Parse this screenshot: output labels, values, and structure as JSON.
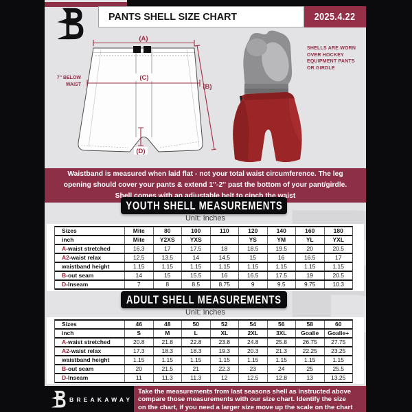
{
  "header": {
    "title": "PANTS SHELL SIZE CHART",
    "date": "2025.4.22"
  },
  "diagram": {
    "label_a": "(A)",
    "label_b": "(B)",
    "label_c": "(C)",
    "label_d": "(D)",
    "waist_note_line1": "7'' BELOW",
    "waist_note_line2": "WAIST"
  },
  "photo_note": {
    "lines": [
      "SHELLS ARE WORN",
      "OVER HOCKEY",
      "EQUIPMENT PANTS",
      "OR GIRDLE"
    ]
  },
  "info_banner": {
    "lines": [
      "Waistband is measured when laid flat - not your total waist circumference. The leg",
      "opening should cover your pants & extend 1''-2'' past the bottom of your pant/girdle.",
      "Shell comes with an adjustable belt to cinch the waist"
    ]
  },
  "youth": {
    "title": "YOUTH SHELL MEASUREMENTS",
    "unit_label": "Unit: Inches",
    "table": {
      "size_row": {
        "label": "Sizes",
        "values": [
          "Mite",
          "80",
          "100",
          "110",
          "120",
          "140",
          "160",
          "180"
        ]
      },
      "inch_row": {
        "label": "inch",
        "values": [
          "Mite",
          "Y2XS",
          "YXS",
          "",
          "YS",
          "YM",
          "YL",
          "YXL"
        ]
      },
      "rows": [
        {
          "prefix": "A",
          "label": "-waist stretched",
          "values": [
            "16.3",
            "17",
            "17.5",
            "18",
            "18.5",
            "19.5",
            "20",
            "20.5"
          ]
        },
        {
          "prefix": "A2",
          "label": "-waist relax",
          "values": [
            "12.5",
            "13.5",
            "14",
            "14.5",
            "15",
            "16",
            "16.5",
            "17"
          ]
        },
        {
          "prefix": "",
          "label": "waistband height",
          "values": [
            "1.15",
            "1.15",
            "1.15",
            "1.15",
            "1.15",
            "1.15",
            "1.15",
            "1.15"
          ]
        },
        {
          "prefix": "B",
          "label": "-out seam",
          "values": [
            "14",
            "15",
            "15.5",
            "16",
            "16.5",
            "17.5",
            "19",
            "20.5"
          ]
        },
        {
          "prefix": "D",
          "label": "-Inseam",
          "values": [
            "7",
            "8",
            "8.5",
            "8.75",
            "9",
            "9.5",
            "9.75",
            "10.3"
          ]
        }
      ]
    }
  },
  "adult": {
    "title": "ADULT SHELL MEASUREMENTS",
    "unit_label": "Unit: Inches",
    "table": {
      "size_row": {
        "label": "Sizes",
        "values": [
          "46",
          "48",
          "50",
          "52",
          "54",
          "56",
          "58",
          "60"
        ]
      },
      "inch_row": {
        "label": "inch",
        "values": [
          "S",
          "M",
          "L",
          "XL",
          "2XL",
          "3XL",
          "Goalie",
          "Goalie+"
        ]
      },
      "rows": [
        {
          "prefix": "A",
          "label": "-waist stretched",
          "values": [
            "20.8",
            "21.8",
            "22.8",
            "23.8",
            "24.8",
            "25.8",
            "26.75",
            "27.75"
          ]
        },
        {
          "prefix": "A2",
          "label": "-waist relax",
          "values": [
            "17.3",
            "18.3",
            "18.3",
            "19.3",
            "20.3",
            "21.3",
            "22.25",
            "23.25"
          ]
        },
        {
          "prefix": "",
          "label": "waistband height",
          "values": [
            "1.15",
            "1.15",
            "1.15",
            "1.15",
            "1.15",
            "1.15",
            "1.15",
            "1.15"
          ]
        },
        {
          "prefix": "B",
          "label": "-out seam",
          "values": [
            "20",
            "21.5",
            "21",
            "22.3",
            "23",
            "24",
            "25",
            "25.5"
          ]
        },
        {
          "prefix": "D",
          "label": "-Inseam",
          "values": [
            "11",
            "11.3",
            "11.3",
            "12",
            "12.5",
            "12.8",
            "13",
            "13.25"
          ]
        }
      ]
    }
  },
  "footer": {
    "brand": "BREAKAWAY",
    "note_lines": [
      "Take the measurements from last seasons shell as instructed above",
      "compare those measurements  with our size chart. Identify the size",
      "on the chart, if you need a larger size move up the scale on the chart"
    ]
  },
  "colors": {
    "maroon": "#8e2f48",
    "date_maroon": "#963049",
    "diagram_maroon": "#a02a42",
    "table_prefix_maroon": "#9e1b36",
    "frame_black": "#0b0b0d",
    "shell_red": "#9c2527"
  }
}
